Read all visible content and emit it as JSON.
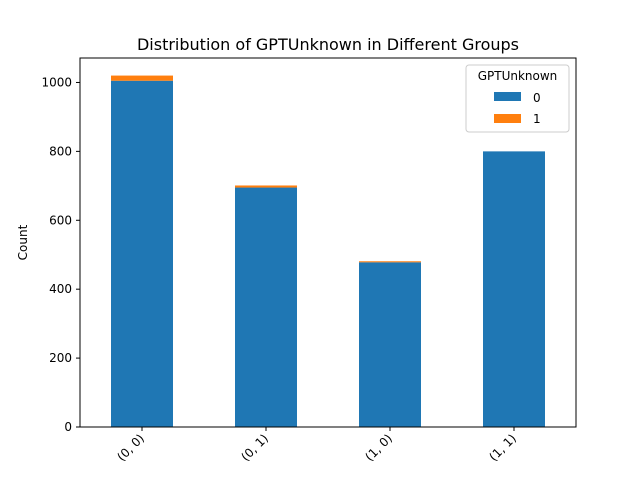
{
  "chart_data": {
    "type": "bar",
    "stacked": true,
    "title": "Distribution of GPTUnknown in Different Groups",
    "xlabel": "",
    "ylabel": "Count",
    "categories": [
      "(0, 0)",
      "(0, 1)",
      "(1, 0)",
      "(1, 1)"
    ],
    "series": [
      {
        "name": "0",
        "color": "#1f77b4",
        "values": [
          1005,
          695,
          478,
          800
        ]
      },
      {
        "name": "1",
        "color": "#ff7f0e",
        "values": [
          15,
          6,
          3,
          0
        ]
      }
    ],
    "ylim": [
      0,
      1071
    ],
    "yticks": [
      0,
      200,
      400,
      600,
      800,
      1000
    ],
    "legend": {
      "title": "GPTUnknown",
      "position": "top-right"
    },
    "grid": false
  }
}
